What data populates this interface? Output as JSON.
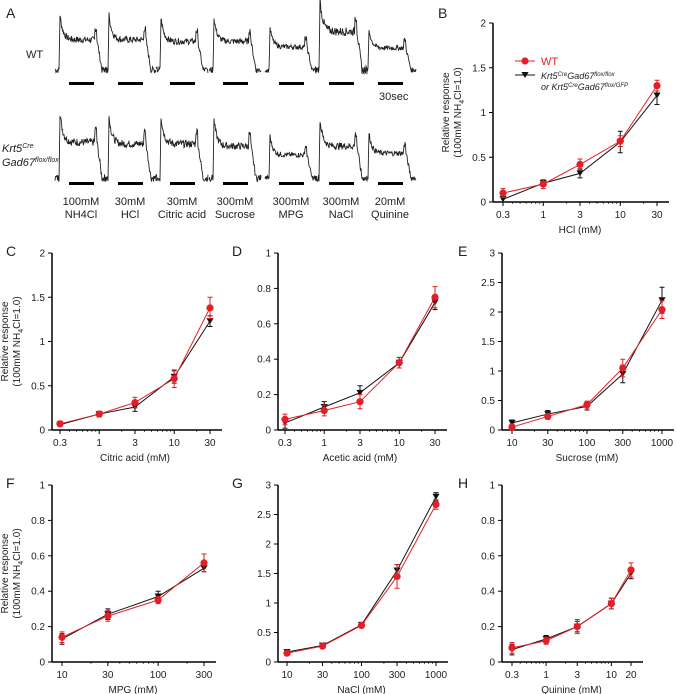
{
  "colors": {
    "wt": "#e41e26",
    "ko": "#111111"
  },
  "panel_a": {
    "label": "A",
    "row_labels": {
      "wt": "WT",
      "ko_line1": "Krt5",
      "ko_line1_sup": "Cre",
      "ko_line2": "Gad67",
      "ko_line2_sup": "flox/flox"
    },
    "scale_bar": "30sec",
    "stimuli": [
      {
        "conc": "100mM",
        "name": "NH4Cl"
      },
      {
        "conc": "30mM",
        "name": "HCl"
      },
      {
        "conc": "30mM",
        "name": "Citric acid"
      },
      {
        "conc": "300mM",
        "name": "Sucrose"
      },
      {
        "conc": "300mM",
        "name": "MPG"
      },
      {
        "conc": "300mM",
        "name": "NaCl"
      },
      {
        "conc": "20mM",
        "name": "Quinine"
      }
    ]
  },
  "legend": {
    "wt": "WT",
    "ko_line1": "Krt5CreGad67flox/flox",
    "ko_line2": "or Krt5CreGad67flox/GFP"
  },
  "chart_data": [
    {
      "id": "B",
      "type": "line",
      "title": "B",
      "xlabel": "HCl (mM)",
      "ylabel": "Relative response",
      "ylabel2": "(100mM NH4Cl=1.0)",
      "xscale": "log",
      "x": [
        0.3,
        1,
        3,
        10,
        30
      ],
      "ylim": [
        0,
        2
      ],
      "yticks": [
        "0",
        "0.5",
        "1",
        "1.5",
        "2"
      ],
      "xticks": [
        "0.3",
        "1",
        "3",
        "10",
        "30"
      ],
      "legend": "upper-left",
      "series": [
        {
          "name": "WT",
          "values": [
            0.1,
            0.2,
            0.42,
            0.68,
            1.3
          ],
          "err": [
            0.05,
            0.05,
            0.06,
            0.06,
            0.06
          ]
        },
        {
          "name": "Krt5CreGad67flox/flox or Krt5CreGad67flox/GFP",
          "values": [
            0.03,
            0.21,
            0.32,
            0.67,
            1.19
          ],
          "err": [
            0.03,
            0.03,
            0.05,
            0.12,
            0.1
          ]
        }
      ]
    },
    {
      "id": "C",
      "type": "line",
      "title": "C",
      "xlabel": "Citric acid (mM)",
      "ylabel": "Relative response",
      "ylabel2": "(100mM NH4Cl=1.0)",
      "xscale": "log",
      "x": [
        0.3,
        1,
        3,
        10,
        30
      ],
      "ylim": [
        0,
        2
      ],
      "yticks": [
        "0",
        "0.5",
        "1",
        "1.5",
        "2"
      ],
      "xticks": [
        "0.3",
        "1",
        "3",
        "10",
        "30"
      ],
      "series": [
        {
          "name": "WT",
          "values": [
            0.07,
            0.18,
            0.31,
            0.58,
            1.38
          ],
          "err": [
            0.03,
            0.03,
            0.06,
            0.1,
            0.12
          ]
        },
        {
          "name": "KO",
          "values": [
            0.06,
            0.18,
            0.26,
            0.6,
            1.23
          ],
          "err": [
            0.02,
            0.03,
            0.05,
            0.07,
            0.06
          ]
        }
      ]
    },
    {
      "id": "D",
      "type": "line",
      "title": "D",
      "xlabel": "Acetic acid (mM)",
      "xscale": "log",
      "x": [
        0.3,
        1,
        3,
        10,
        30
      ],
      "ylim": [
        0,
        1
      ],
      "yticks": [
        "0",
        "0.2",
        "0.4",
        "0.6",
        "0.8",
        "1"
      ],
      "xticks": [
        "0.3",
        "1",
        "3",
        "10",
        "30"
      ],
      "series": [
        {
          "name": "WT",
          "values": [
            0.06,
            0.11,
            0.16,
            0.38,
            0.75
          ],
          "err": [
            0.03,
            0.03,
            0.04,
            0.03,
            0.06
          ]
        },
        {
          "name": "KO",
          "values": [
            0.04,
            0.13,
            0.21,
            0.38,
            0.72
          ],
          "err": [
            0.03,
            0.03,
            0.04,
            0.03,
            0.04
          ]
        }
      ]
    },
    {
      "id": "E",
      "type": "line",
      "title": "E",
      "xlabel": "Sucrose (mM)",
      "xscale": "log",
      "x": [
        10,
        30,
        100,
        300,
        1000
      ],
      "ylim": [
        0,
        3
      ],
      "yticks": [
        "0",
        "0.5",
        "1",
        "1.5",
        "2",
        "2.5",
        "3"
      ],
      "xticks": [
        "10",
        "30",
        "100",
        "300",
        "1000"
      ],
      "series": [
        {
          "name": "WT",
          "values": [
            0.05,
            0.23,
            0.43,
            1.05,
            2.04
          ],
          "err": [
            0.05,
            0.05,
            0.06,
            0.15,
            0.15
          ]
        },
        {
          "name": "KO",
          "values": [
            0.12,
            0.27,
            0.4,
            0.95,
            2.2
          ],
          "err": [
            0.05,
            0.06,
            0.06,
            0.15,
            0.22
          ]
        }
      ]
    },
    {
      "id": "F",
      "type": "line",
      "title": "F",
      "xlabel": "MPG (mM)",
      "ylabel": "Relative response",
      "ylabel2": "(100mM NH4Cl=1.0)",
      "xscale": "log",
      "x": [
        10,
        30,
        100,
        300
      ],
      "ylim": [
        0,
        1
      ],
      "yticks": [
        "0",
        "0.2",
        "0.4",
        "0.6",
        "0.8",
        "1"
      ],
      "xticks": [
        "10",
        "30",
        "100",
        "300"
      ],
      "series": [
        {
          "name": "WT",
          "values": [
            0.14,
            0.26,
            0.35,
            0.56
          ],
          "err": [
            0.03,
            0.03,
            0.02,
            0.05
          ]
        },
        {
          "name": "KO",
          "values": [
            0.13,
            0.27,
            0.37,
            0.53
          ],
          "err": [
            0.03,
            0.03,
            0.03,
            0.02
          ]
        }
      ]
    },
    {
      "id": "G",
      "type": "line",
      "title": "G",
      "xlabel": "NaCl (mM)",
      "xscale": "log",
      "x": [
        10,
        30,
        100,
        300,
        1000
      ],
      "ylim": [
        0,
        3
      ],
      "yticks": [
        "0",
        "0.5",
        "1",
        "1.5",
        "2",
        "2.5",
        "3"
      ],
      "xticks": [
        "10",
        "30",
        "100",
        "300",
        "1000"
      ],
      "series": [
        {
          "name": "WT",
          "values": [
            0.15,
            0.27,
            0.62,
            1.45,
            2.67
          ],
          "err": [
            0.03,
            0.03,
            0.04,
            0.2,
            0.08
          ]
        },
        {
          "name": "KO",
          "values": [
            0.17,
            0.28,
            0.63,
            1.55,
            2.8
          ],
          "err": [
            0.03,
            0.03,
            0.04,
            0.1,
            0.07
          ]
        }
      ]
    },
    {
      "id": "H",
      "type": "line",
      "title": "H",
      "xlabel": "Quinine (mM)",
      "xscale": "log",
      "x": [
        0.3,
        1,
        3,
        10,
        20
      ],
      "ylim": [
        0,
        1
      ],
      "yticks": [
        "0",
        "0.2",
        "0.4",
        "0.6",
        "0.8",
        "1"
      ],
      "xticks": [
        "0.3",
        "1",
        "3",
        "10",
        "20"
      ],
      "series": [
        {
          "name": "WT",
          "values": [
            0.08,
            0.12,
            0.2,
            0.33,
            0.52
          ],
          "err": [
            0.03,
            0.02,
            0.04,
            0.03,
            0.04
          ]
        },
        {
          "name": "KO",
          "values": [
            0.07,
            0.13,
            0.2,
            0.33,
            0.5
          ],
          "err": [
            0.03,
            0.02,
            0.03,
            0.03,
            0.03
          ]
        }
      ]
    }
  ]
}
